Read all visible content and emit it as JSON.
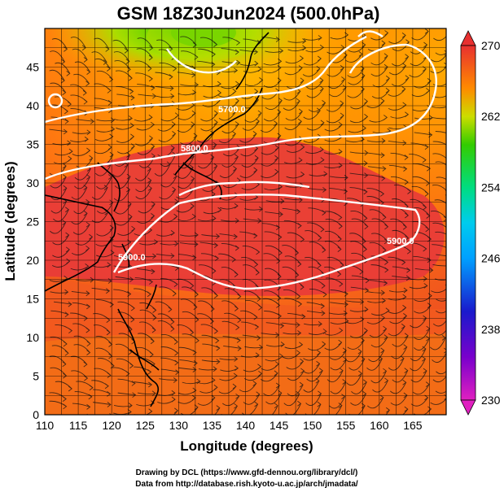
{
  "title": "GSM 18Z30Jun2024 (500.0hPa)",
  "xlabel": "Longitude (degrees)",
  "ylabel": "Latitude  (degrees)",
  "x_ticks": [
    "110",
    "115",
    "120",
    "125",
    "130",
    "135",
    "140",
    "145",
    "150",
    "155",
    "160",
    "165"
  ],
  "y_ticks": [
    "0",
    "5",
    "10",
    "15",
    "20",
    "25",
    "30",
    "35",
    "40",
    "45"
  ],
  "colorbar": {
    "ticks": [
      "270",
      "262",
      "254",
      "246",
      "238",
      "230"
    ],
    "colors": [
      "#e83030",
      "#ff8a00",
      "#33cc00",
      "#00ccee",
      "#1a1acc",
      "#e020c0"
    ]
  },
  "contour_labels": [
    "5700.0",
    "5800.0",
    "5900.0",
    "5900.0"
  ],
  "credits": [
    "Drawing by DCL (https://www.gfd-dennou.org/library/dcl/)",
    "Data from http://database.rish.kyoto-u.ac.jp/arch/jmadata/"
  ],
  "chart_data": {
    "type": "heatmap",
    "title": "GSM 18Z30Jun2024 (500.0hPa)",
    "xlabel": "Longitude (degrees)",
    "ylabel": "Latitude  (degrees)",
    "xlim": [
      110,
      170
    ],
    "ylim": [
      0,
      50
    ],
    "colorbar_range": [
      230,
      270
    ],
    "contours": [
      5700,
      5800,
      5900
    ]
  }
}
